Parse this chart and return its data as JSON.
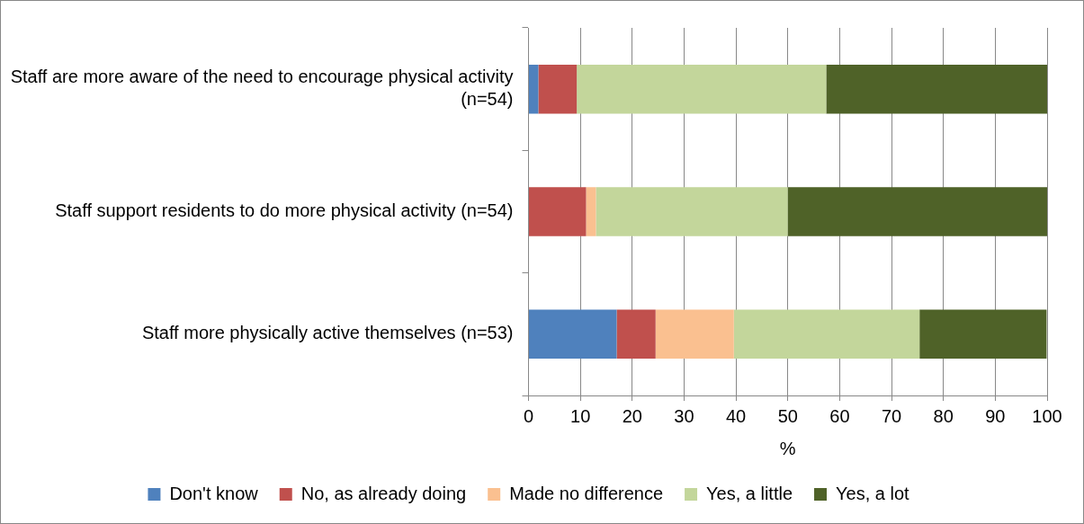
{
  "chart_data": {
    "type": "bar",
    "orientation": "horizontal",
    "stacked": true,
    "xlabel": "%",
    "categories": [
      "Staff are more aware of the need to encourage physical activity (n=54)",
      "Staff support residents to do more physical activity (n=54)",
      "Staff more physically active themselves (n=53)"
    ],
    "series": [
      {
        "name": "Don't know",
        "color": "#4f81bd",
        "values": [
          1.9,
          0,
          17
        ]
      },
      {
        "name": "No, as already doing",
        "color": "#c0504d",
        "values": [
          7.4,
          11.1,
          7.5
        ]
      },
      {
        "name": "Made no difference",
        "color": "#fac090",
        "values": [
          0,
          1.9,
          15.1
        ]
      },
      {
        "name": "Yes, a little",
        "color": "#c3d69b",
        "values": [
          48.1,
          37,
          35.8
        ]
      },
      {
        "name": "Yes, a lot",
        "color": "#4f6228",
        "values": [
          42.6,
          50,
          24.5
        ]
      }
    ],
    "xlim": [
      0,
      100
    ],
    "xticks": [
      0,
      10,
      20,
      30,
      40,
      50,
      60,
      70,
      80,
      90,
      100
    ],
    "grid": "x",
    "legend": "bottom"
  }
}
